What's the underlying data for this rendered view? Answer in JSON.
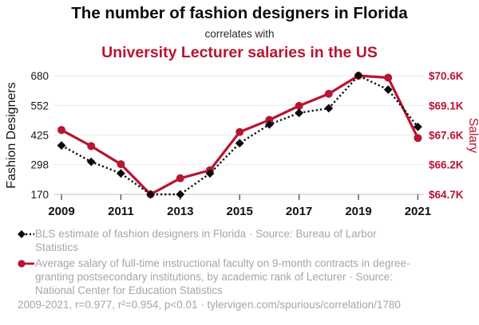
{
  "header": {
    "title": "The number of fashion designers in Florida",
    "connector": "correlates with",
    "subtitle": "University Lecturer salaries in the US"
  },
  "colors": {
    "accent_red": "#b91432",
    "series_black": "#0b0b0b",
    "grid": "#ebebeb",
    "axis_line": "#c2c2c2",
    "tick_mark": "#555555",
    "muted_text": "#a6a6a6",
    "dark_text": "#111111"
  },
  "chart_data": {
    "type": "line",
    "x": [
      2009,
      2010,
      2011,
      2012,
      2013,
      2014,
      2015,
      2016,
      2017,
      2018,
      2019,
      2020,
      2021
    ],
    "series": [
      {
        "name": "BLS estimate of fashion designers in Florida",
        "axis": "left",
        "style": "dotted-diamond",
        "color": "#0b0b0b",
        "values": [
          380,
          310,
          260,
          170,
          170,
          260,
          390,
          470,
          520,
          540,
          680,
          620,
          460
        ]
      },
      {
        "name": "Average salary of full-time instructional faculty, rank of Lecturer (US)",
        "axis": "right",
        "style": "solid-circle",
        "color": "#b91432",
        "values": [
          67.9,
          67.1,
          66.2,
          64.7,
          65.5,
          65.9,
          67.8,
          68.4,
          69.1,
          69.7,
          70.6,
          70.5,
          67.5
        ]
      }
    ],
    "left_axis": {
      "label": "Fashion Designers",
      "ticks": [
        680,
        552,
        425,
        298,
        170
      ],
      "range": [
        170,
        680
      ]
    },
    "right_axis": {
      "label": "Salary",
      "tick_labels": [
        "$70.6K",
        "$69.1K",
        "$67.6K",
        "$66.2K",
        "$64.7K"
      ],
      "range": [
        64.7,
        70.6
      ]
    },
    "x_axis": {
      "ticks": [
        2009,
        2011,
        2013,
        2015,
        2017,
        2019,
        2021
      ],
      "range": [
        2009,
        2021
      ]
    },
    "grid": true,
    "legend_position": "bottom"
  },
  "legend": {
    "entries": [
      {
        "marker": "black-diamond-dotted",
        "label": "BLS estimate of fashion designers in Florida · Source: Bureau of Larbor Statistics"
      },
      {
        "marker": "red-circle-solid",
        "label": "Average salary of full-time instructional faculty on 9-month contracts in degree-granting postsecondary institutions, by academic rank of Lecturer · Source: National Center for Education Statistics"
      }
    ]
  },
  "footer": {
    "stats": "2009-2021, r=0.977, r²=0.954, p<0.01 · tylervigen.com/spurious/correlation/1780"
  }
}
